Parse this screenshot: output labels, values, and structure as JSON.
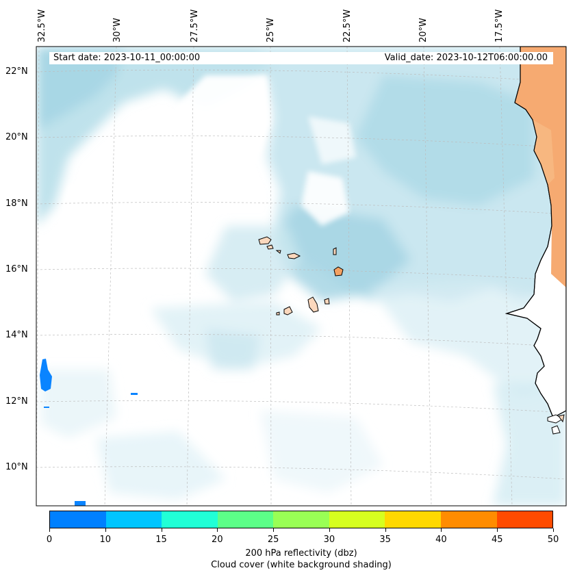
{
  "map": {
    "start_date": "Start date: 2023-10-11_00:00:00",
    "valid_date": "Valid_date: 2023-10-12T06:00:00.00",
    "lon_labels": [
      "32.5°W",
      "30°W",
      "27.5°W",
      "25°W",
      "22.5°W",
      "20°W",
      "17.5°W"
    ],
    "lat_labels": [
      "22°N",
      "20°N",
      "18°N",
      "16°N",
      "14°N",
      "12°N",
      "10°N"
    ],
    "extent": {
      "lon_min": -32.5,
      "lon_max": -15.3,
      "lat_min": 8.9,
      "lat_max": 22.8
    },
    "colors": {
      "cloud": "#b4dde9",
      "cloud_light": "#e2f2f7",
      "land_orange": "#f5a162",
      "land_light": "#fbd8bd",
      "reflectivity_blue": "#0a84ff"
    }
  },
  "colorbar": {
    "title_line1": "200 hPa reflectivity (dbz)",
    "title_line2": "Cloud cover (white background shading)",
    "ticks": [
      "0",
      "10",
      "15",
      "20",
      "25",
      "30",
      "35",
      "40",
      "45",
      "50"
    ],
    "colors": [
      "#0080ff",
      "#00c5ff",
      "#21ffd6",
      "#5cff88",
      "#99ff55",
      "#d6ff1f",
      "#ffd800",
      "#ff8c00",
      "#ff4b00"
    ]
  }
}
